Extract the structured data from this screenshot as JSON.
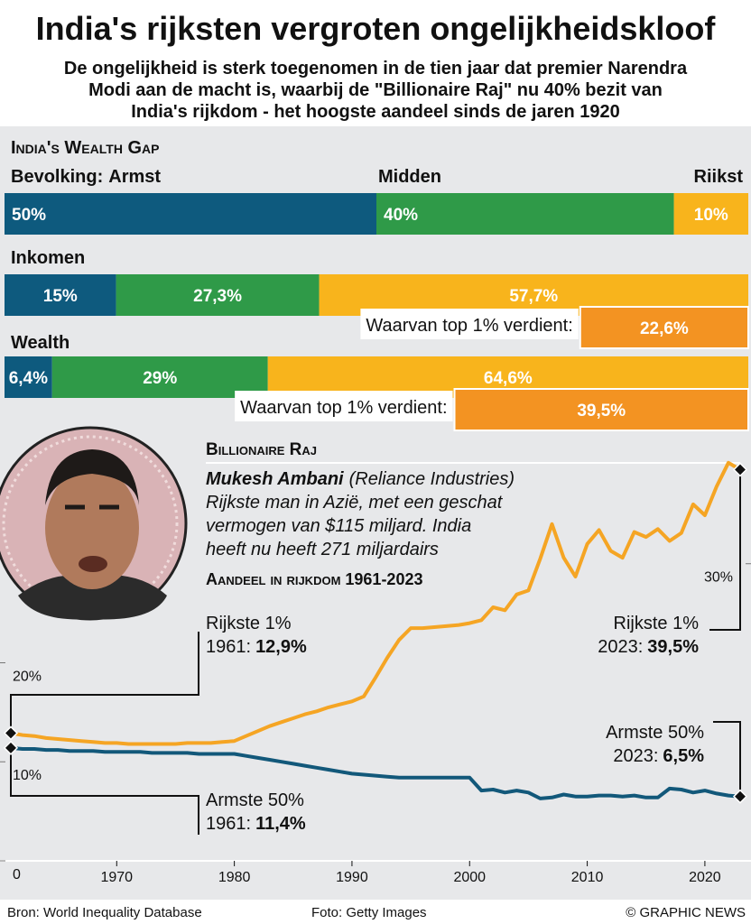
{
  "header": {
    "title": "India's rijksten vergroten ongelijkheidskloof",
    "subtitle": [
      "De ongelijkheid is sterk toegenomen in de tien jaar dat premier Narendra",
      "Modi aan de macht is, waarbij de \"Billionaire Raj\" nu 40% bezit van",
      "India's rijkdom - het hoogste aandeel sinds de jaren 1920"
    ]
  },
  "chart_data": [
    {
      "type": "stacked_bar",
      "title": "India's Wealth Gap",
      "categories": [
        "Bevolking:",
        "Inkomen",
        "Wealth"
      ],
      "xlim": [
        0,
        100
      ],
      "series": [
        {
          "name": "Armst",
          "color": "#0e5a7e",
          "values": [
            50,
            15,
            6.4
          ],
          "value_labels": [
            "50%",
            "15%",
            "6,4%"
          ]
        },
        {
          "name": "Midden",
          "color": "#2f9a48",
          "values": [
            40,
            27.3,
            29
          ],
          "value_labels": [
            "40%",
            "27,3%",
            "29%"
          ]
        },
        {
          "name": "Riikst",
          "color": "#f8b41c",
          "values": [
            10,
            57.7,
            64.6
          ],
          "value_labels": [
            "10%",
            "57,7%",
            "64,6%"
          ]
        }
      ],
      "top_share": {
        "name": "Waarvan top 1% verdient:",
        "color": "#f39322",
        "values": [
          null,
          22.6,
          39.5
        ],
        "value_labels": [
          null,
          "22,6%",
          "39,5%"
        ]
      }
    },
    {
      "type": "line",
      "title": "Aandeel in rijkdom 1961-2023",
      "x": [
        1961,
        1962,
        1963,
        1964,
        1965,
        1966,
        1967,
        1968,
        1969,
        1970,
        1971,
        1972,
        1973,
        1974,
        1975,
        1976,
        1977,
        1978,
        1979,
        1980,
        1981,
        1982,
        1983,
        1984,
        1985,
        1986,
        1987,
        1988,
        1989,
        1990,
        1991,
        1992,
        1993,
        1994,
        1995,
        1996,
        1997,
        1998,
        1999,
        2000,
        2001,
        2002,
        2003,
        2004,
        2005,
        2006,
        2007,
        2008,
        2009,
        2010,
        2011,
        2012,
        2013,
        2014,
        2015,
        2016,
        2017,
        2018,
        2019,
        2020,
        2021,
        2022,
        2023
      ],
      "xlim": [
        1961,
        2023
      ],
      "xticks": [
        1970,
        1980,
        1990,
        2000,
        2010,
        2020
      ],
      "ylim": [
        0,
        41
      ],
      "yticks": [
        0,
        {
          "value": 10,
          "label": "10%"
        },
        {
          "value": 20,
          "label": "20%"
        },
        {
          "value": 30,
          "label": "30%"
        }
      ],
      "series": [
        {
          "name": "Rijkste 1%",
          "color": "#f5a524",
          "values": [
            12.9,
            12.7,
            12.6,
            12.4,
            12.3,
            12.2,
            12.1,
            12.0,
            11.9,
            11.9,
            11.8,
            11.8,
            11.8,
            11.8,
            11.8,
            11.9,
            11.9,
            11.9,
            12.0,
            12.1,
            12.6,
            13.1,
            13.6,
            14.0,
            14.4,
            14.8,
            15.1,
            15.5,
            15.8,
            16.1,
            16.6,
            18.5,
            20.5,
            22.3,
            23.5,
            23.5,
            23.6,
            23.7,
            23.8,
            24.0,
            24.3,
            25.6,
            25.3,
            26.9,
            27.3,
            30.5,
            34.0,
            30.6,
            28.7,
            32.0,
            33.4,
            31.3,
            30.6,
            33.2,
            32.7,
            33.5,
            32.3,
            33.1,
            36.0,
            34.9,
            37.8,
            40.2,
            39.5
          ]
        },
        {
          "name": "Armste 50%",
          "color": "#12587a",
          "values": [
            11.4,
            11.3,
            11.3,
            11.2,
            11.2,
            11.1,
            11.1,
            11.1,
            11.0,
            11.0,
            11.0,
            11.0,
            10.9,
            10.9,
            10.9,
            10.9,
            10.8,
            10.8,
            10.8,
            10.8,
            10.6,
            10.4,
            10.2,
            10.0,
            9.8,
            9.6,
            9.4,
            9.2,
            9.0,
            8.8,
            8.7,
            8.6,
            8.5,
            8.4,
            8.4,
            8.4,
            8.4,
            8.4,
            8.4,
            8.4,
            7.1,
            7.2,
            6.9,
            7.1,
            6.9,
            6.3,
            6.4,
            6.7,
            6.5,
            6.5,
            6.6,
            6.6,
            6.5,
            6.6,
            6.4,
            6.4,
            7.3,
            7.2,
            6.9,
            7.1,
            6.8,
            6.6,
            6.5
          ]
        }
      ],
      "annotations": [
        {
          "text": "Rijkste 1%",
          "date": "1961:",
          "value_label": "12,9%"
        },
        {
          "text": "Armste 50%",
          "date": "1961:",
          "value_label": "11,4%"
        },
        {
          "text": "Rijkste 1%",
          "date": "2023:",
          "value_label": "39,5%"
        },
        {
          "text": "Armste 50%",
          "date": "2023:",
          "value_label": "6,5%"
        }
      ]
    }
  ],
  "profile": {
    "heading": "Billionaire Raj",
    "name": "Mukesh Ambani",
    "company": "(Reliance Industries)",
    "text": [
      "Rijkste man in Azië, met een geschat",
      "vermogen van $115 miljard. India",
      "heeft nu heeft 271 miljardairs"
    ]
  },
  "footer": {
    "source": "Bron: World Inequality Database",
    "photo": "Foto: Getty Images",
    "credit": "© GRAPHIC NEWS"
  }
}
